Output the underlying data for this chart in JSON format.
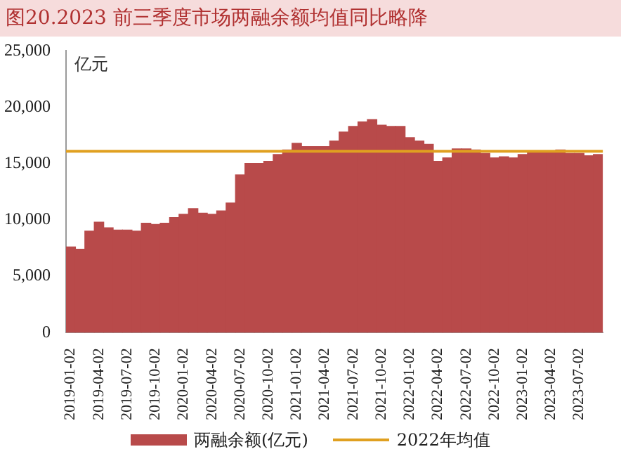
{
  "chart_data": {
    "type": "bar",
    "title": "图20.2023 前三季度市场两融余额均值同比略降",
    "ylabel": "亿元",
    "categories": [
      "2019-01-02",
      null,
      null,
      "2019-04-02",
      null,
      null,
      "2019-07-02",
      null,
      null,
      "2019-10-02",
      null,
      null,
      "2020-01-02",
      null,
      null,
      "2020-04-02",
      null,
      null,
      "2020-07-02",
      null,
      null,
      "2020-10-02",
      null,
      null,
      "2021-01-02",
      null,
      null,
      "2021-04-02",
      null,
      null,
      "2021-07-02",
      null,
      null,
      "2021-10-02",
      null,
      null,
      "2022-01-02",
      null,
      null,
      "2022-04-02",
      null,
      null,
      "2022-07-02",
      null,
      null,
      "2022-10-02",
      null,
      null,
      "2023-01-02",
      null,
      null,
      "2023-04-02",
      null,
      null,
      "2023-07-02",
      null,
      null
    ],
    "series": [
      {
        "name": "两融余额(亿元)",
        "color": "#b84a4a",
        "values": [
          7600,
          7400,
          9000,
          9800,
          9300,
          9100,
          9100,
          9000,
          9700,
          9600,
          9700,
          10200,
          10500,
          11000,
          10600,
          10500,
          10800,
          11500,
          14000,
          15000,
          15000,
          15200,
          15800,
          16200,
          16800,
          16500,
          16500,
          16500,
          17000,
          17800,
          18300,
          18700,
          18900,
          18400,
          18300,
          18300,
          17300,
          17000,
          16700,
          15200,
          15500,
          16300,
          16300,
          16200,
          15900,
          15500,
          15600,
          15500,
          15800,
          16100,
          16000,
          16100,
          16200,
          15900,
          15900,
          15700,
          15800
        ]
      }
    ],
    "ref_lines": [
      {
        "axis": "y",
        "value": 16100,
        "label": "2022年均值",
        "color": "#e0a020"
      }
    ],
    "ylim": [
      0,
      25000
    ],
    "yticks": [
      0,
      {
        "value": 5000,
        "label": "5,000"
      },
      {
        "value": 10000,
        "label": "10,000"
      },
      {
        "value": 15000,
        "label": "15,000"
      },
      {
        "value": 20000,
        "label": "20,000"
      },
      {
        "value": 25000,
        "label": "25,000"
      }
    ],
    "grid": false,
    "legend": "bottom"
  }
}
